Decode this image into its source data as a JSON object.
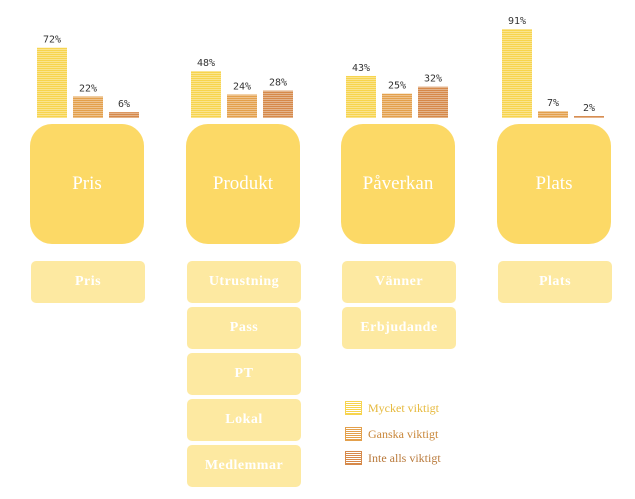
{
  "colors": {
    "mycket": "#f7d44e",
    "ganska": "#e3a04c",
    "inte": "#d6894a",
    "big_box": "#fcd966",
    "sub_box": "#fde9a1",
    "text_white": "#ffffff"
  },
  "categories": [
    {
      "label": "Pris",
      "subs": [
        "Pris"
      ]
    },
    {
      "label": "Produkt",
      "subs": [
        "Utrustning",
        "Pass",
        "PT",
        "Lokal",
        "Medlemmar"
      ]
    },
    {
      "label": "Påverkan",
      "subs": [
        "Vänner",
        "Erbjudande"
      ]
    },
    {
      "label": "Plats",
      "subs": [
        "Plats"
      ]
    }
  ],
  "chart_data": {
    "type": "bar",
    "categories": [
      "Pris",
      "Produkt",
      "Påverkan",
      "Plats"
    ],
    "series": [
      {
        "name": "Mycket viktigt",
        "values": [
          72,
          48,
          43,
          91
        ],
        "labels": [
          "72%",
          "48%",
          "43%",
          "91%"
        ]
      },
      {
        "name": "Ganska viktigt",
        "values": [
          22,
          24,
          25,
          7
        ],
        "labels": [
          "22%",
          "24%",
          "25%",
          "7%"
        ]
      },
      {
        "name": "Inte alls viktigt",
        "values": [
          6,
          28,
          32,
          2
        ],
        "labels": [
          "6%",
          "28%",
          "32%",
          "2%"
        ]
      }
    ],
    "ylim": [
      0,
      100
    ],
    "legend_position": "bottom-center"
  },
  "legend": [
    {
      "label": "Mycket viktigt",
      "color": "#f7d44e",
      "text_color": "#e6b93c"
    },
    {
      "label": "Ganska viktigt",
      "color": "#e3a04c",
      "text_color": "#c9873a"
    },
    {
      "label": "Inte alls viktigt",
      "color": "#d6894a",
      "text_color": "#b97a3c"
    }
  ]
}
